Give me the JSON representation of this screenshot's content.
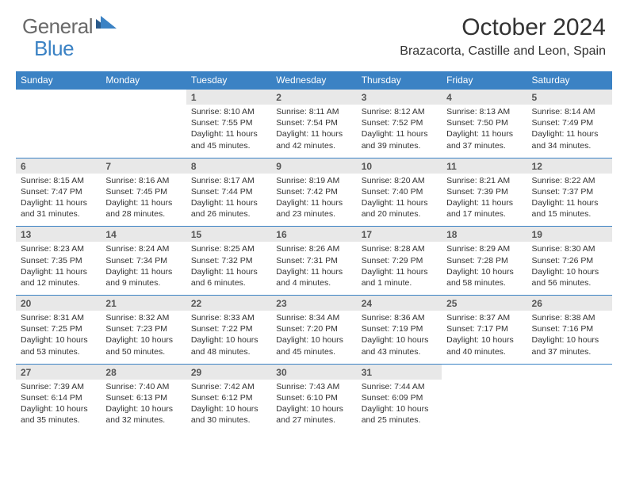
{
  "logo": {
    "text_main": "General",
    "text_blue": "Blue"
  },
  "title": "October 2024",
  "location": "Brazacorta, Castille and Leon, Spain",
  "colors": {
    "header_bg": "#3b82c4",
    "header_text": "#ffffff",
    "daynum_bg": "#e8e8e8",
    "daynum_text": "#555555",
    "body_text": "#333333",
    "logo_gray": "#6a6a6a",
    "logo_blue": "#3b82c4"
  },
  "days_of_week": [
    "Sunday",
    "Monday",
    "Tuesday",
    "Wednesday",
    "Thursday",
    "Friday",
    "Saturday"
  ],
  "weeks": [
    [
      null,
      null,
      {
        "n": "1",
        "sr": "8:10 AM",
        "ss": "7:55 PM",
        "dl": "11 hours and 45 minutes."
      },
      {
        "n": "2",
        "sr": "8:11 AM",
        "ss": "7:54 PM",
        "dl": "11 hours and 42 minutes."
      },
      {
        "n": "3",
        "sr": "8:12 AM",
        "ss": "7:52 PM",
        "dl": "11 hours and 39 minutes."
      },
      {
        "n": "4",
        "sr": "8:13 AM",
        "ss": "7:50 PM",
        "dl": "11 hours and 37 minutes."
      },
      {
        "n": "5",
        "sr": "8:14 AM",
        "ss": "7:49 PM",
        "dl": "11 hours and 34 minutes."
      }
    ],
    [
      {
        "n": "6",
        "sr": "8:15 AM",
        "ss": "7:47 PM",
        "dl": "11 hours and 31 minutes."
      },
      {
        "n": "7",
        "sr": "8:16 AM",
        "ss": "7:45 PM",
        "dl": "11 hours and 28 minutes."
      },
      {
        "n": "8",
        "sr": "8:17 AM",
        "ss": "7:44 PM",
        "dl": "11 hours and 26 minutes."
      },
      {
        "n": "9",
        "sr": "8:19 AM",
        "ss": "7:42 PM",
        "dl": "11 hours and 23 minutes."
      },
      {
        "n": "10",
        "sr": "8:20 AM",
        "ss": "7:40 PM",
        "dl": "11 hours and 20 minutes."
      },
      {
        "n": "11",
        "sr": "8:21 AM",
        "ss": "7:39 PM",
        "dl": "11 hours and 17 minutes."
      },
      {
        "n": "12",
        "sr": "8:22 AM",
        "ss": "7:37 PM",
        "dl": "11 hours and 15 minutes."
      }
    ],
    [
      {
        "n": "13",
        "sr": "8:23 AM",
        "ss": "7:35 PM",
        "dl": "11 hours and 12 minutes."
      },
      {
        "n": "14",
        "sr": "8:24 AM",
        "ss": "7:34 PM",
        "dl": "11 hours and 9 minutes."
      },
      {
        "n": "15",
        "sr": "8:25 AM",
        "ss": "7:32 PM",
        "dl": "11 hours and 6 minutes."
      },
      {
        "n": "16",
        "sr": "8:26 AM",
        "ss": "7:31 PM",
        "dl": "11 hours and 4 minutes."
      },
      {
        "n": "17",
        "sr": "8:28 AM",
        "ss": "7:29 PM",
        "dl": "11 hours and 1 minute."
      },
      {
        "n": "18",
        "sr": "8:29 AM",
        "ss": "7:28 PM",
        "dl": "10 hours and 58 minutes."
      },
      {
        "n": "19",
        "sr": "8:30 AM",
        "ss": "7:26 PM",
        "dl": "10 hours and 56 minutes."
      }
    ],
    [
      {
        "n": "20",
        "sr": "8:31 AM",
        "ss": "7:25 PM",
        "dl": "10 hours and 53 minutes."
      },
      {
        "n": "21",
        "sr": "8:32 AM",
        "ss": "7:23 PM",
        "dl": "10 hours and 50 minutes."
      },
      {
        "n": "22",
        "sr": "8:33 AM",
        "ss": "7:22 PM",
        "dl": "10 hours and 48 minutes."
      },
      {
        "n": "23",
        "sr": "8:34 AM",
        "ss": "7:20 PM",
        "dl": "10 hours and 45 minutes."
      },
      {
        "n": "24",
        "sr": "8:36 AM",
        "ss": "7:19 PM",
        "dl": "10 hours and 43 minutes."
      },
      {
        "n": "25",
        "sr": "8:37 AM",
        "ss": "7:17 PM",
        "dl": "10 hours and 40 minutes."
      },
      {
        "n": "26",
        "sr": "8:38 AM",
        "ss": "7:16 PM",
        "dl": "10 hours and 37 minutes."
      }
    ],
    [
      {
        "n": "27",
        "sr": "7:39 AM",
        "ss": "6:14 PM",
        "dl": "10 hours and 35 minutes."
      },
      {
        "n": "28",
        "sr": "7:40 AM",
        "ss": "6:13 PM",
        "dl": "10 hours and 32 minutes."
      },
      {
        "n": "29",
        "sr": "7:42 AM",
        "ss": "6:12 PM",
        "dl": "10 hours and 30 minutes."
      },
      {
        "n": "30",
        "sr": "7:43 AM",
        "ss": "6:10 PM",
        "dl": "10 hours and 27 minutes."
      },
      {
        "n": "31",
        "sr": "7:44 AM",
        "ss": "6:09 PM",
        "dl": "10 hours and 25 minutes."
      },
      null,
      null
    ]
  ],
  "labels": {
    "sunrise": "Sunrise:",
    "sunset": "Sunset:",
    "daylight": "Daylight:"
  }
}
